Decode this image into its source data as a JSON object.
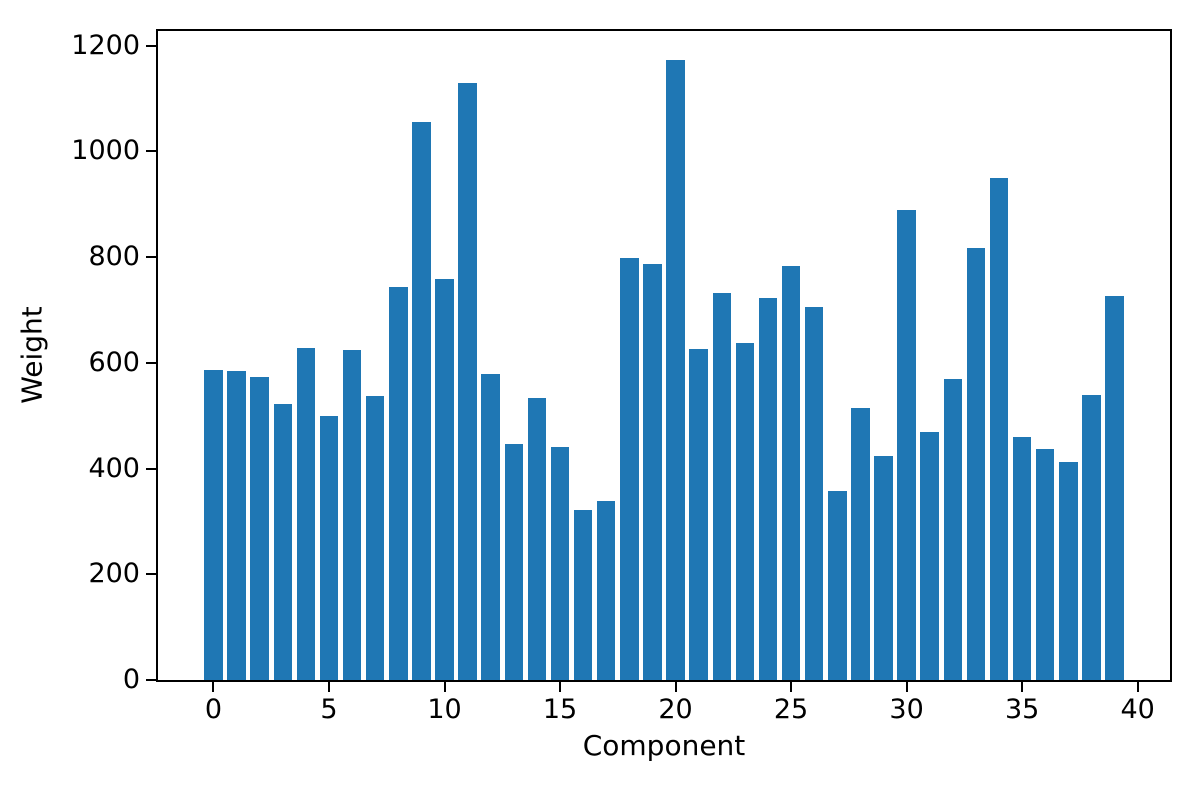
{
  "chart_data": {
    "type": "bar",
    "title": "",
    "xlabel": "Component",
    "ylabel": "Weight",
    "categories": [
      0,
      1,
      2,
      3,
      4,
      5,
      6,
      7,
      8,
      9,
      10,
      11,
      12,
      13,
      14,
      15,
      16,
      17,
      18,
      19,
      20,
      21,
      22,
      23,
      24,
      25,
      26,
      27,
      28,
      29,
      30,
      31,
      32,
      33,
      34,
      35,
      36,
      37,
      38,
      39
    ],
    "values": [
      586,
      584,
      574,
      523,
      629,
      500,
      624,
      538,
      743,
      1056,
      759,
      1130,
      579,
      446,
      533,
      441,
      321,
      339,
      799,
      788,
      1174,
      627,
      732,
      638,
      722,
      784,
      706,
      357,
      515,
      423,
      889,
      470,
      570,
      818,
      950,
      459,
      437,
      413,
      539,
      726
    ],
    "x_ticks": [
      0,
      5,
      10,
      15,
      20,
      25,
      30,
      35,
      40
    ],
    "y_ticks": [
      0,
      200,
      400,
      600,
      800,
      1000,
      1200
    ],
    "xlim": [
      -2.4,
      41.4
    ],
    "ylim": [
      0,
      1228
    ],
    "bar_width_units": 0.8,
    "grid": "off",
    "legend": "none",
    "bar_color": "#1f77b4",
    "background_color": "#ffffff",
    "spine_color": "#000000",
    "text_color": "#000000"
  }
}
